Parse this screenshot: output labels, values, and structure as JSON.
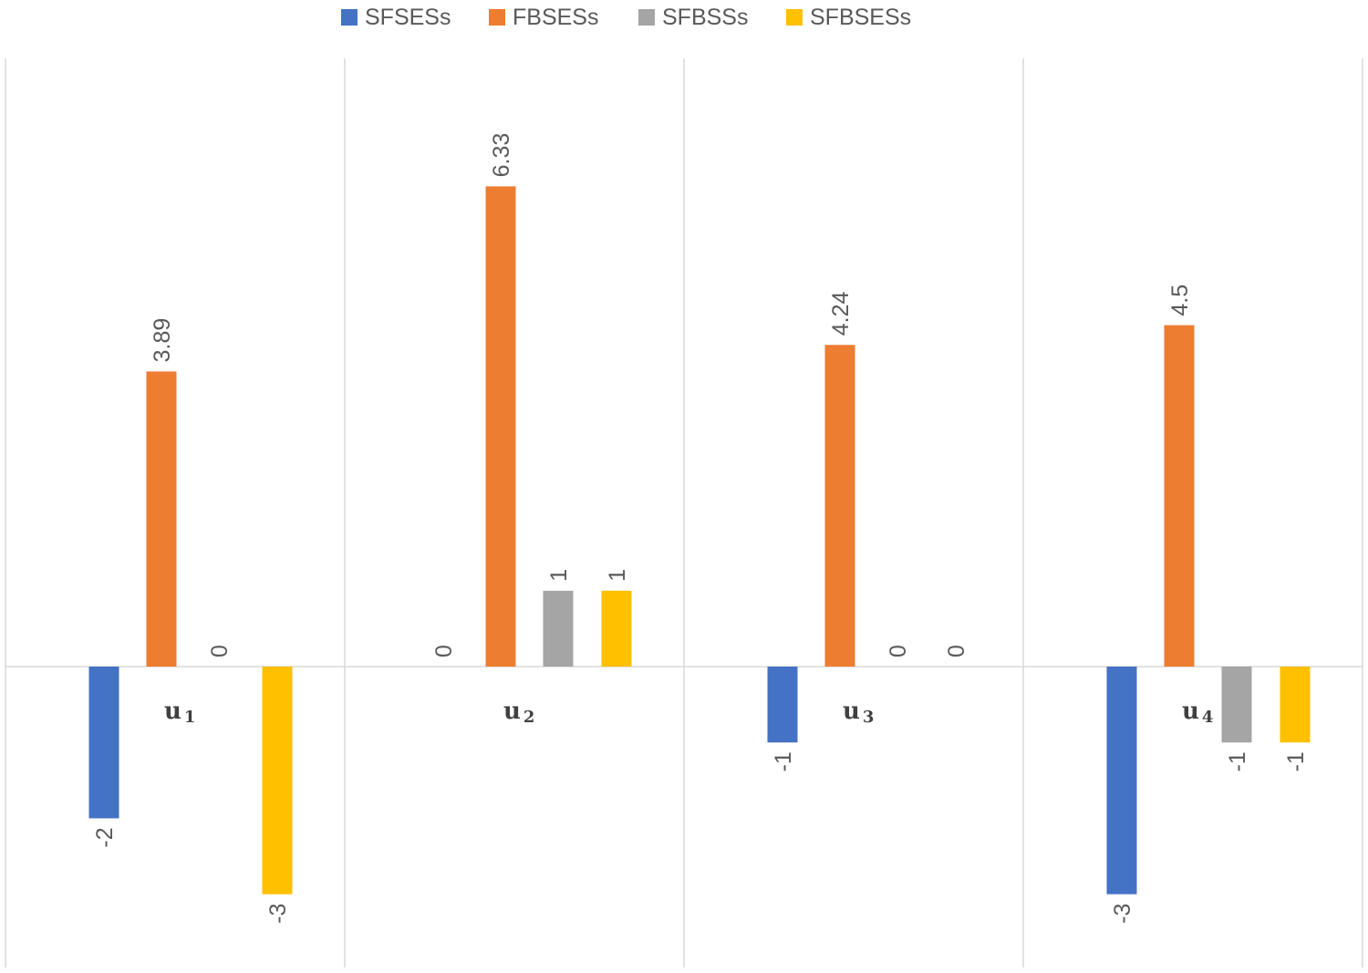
{
  "chart_data": {
    "type": "bar",
    "categories": [
      "u1",
      "u2",
      "u3",
      "u4"
    ],
    "category_display": [
      {
        "main": "u",
        "sub": "1"
      },
      {
        "main": "u",
        "sub": "2"
      },
      {
        "main": "u",
        "sub": "3"
      },
      {
        "main": "u",
        "sub": "4"
      }
    ],
    "series": [
      {
        "name": "SFSESs",
        "color": "#4472C4",
        "values": [
          -2,
          0,
          -1,
          -3
        ],
        "labels": [
          "-2",
          "0",
          "-1",
          "-3"
        ]
      },
      {
        "name": "FBSESs",
        "color": "#ED7D31",
        "values": [
          3.89,
          6.33,
          4.24,
          4.5
        ],
        "labels": [
          "3.89",
          "6.33",
          "4.24",
          "4.5"
        ]
      },
      {
        "name": "SFBSSs",
        "color": "#A5A5A5",
        "values": [
          0,
          1,
          0,
          -1
        ],
        "labels": [
          "0",
          "1",
          "0",
          "-1"
        ]
      },
      {
        "name": "SFBSESs",
        "color": "#FFC000",
        "values": [
          -3,
          1,
          0,
          -1
        ],
        "labels": [
          "-3",
          "1",
          "0",
          "-1"
        ]
      }
    ],
    "title": "",
    "xlabel": "",
    "ylabel": "",
    "ylim": [
      -4,
      8
    ],
    "legend": "top",
    "grid": false
  }
}
